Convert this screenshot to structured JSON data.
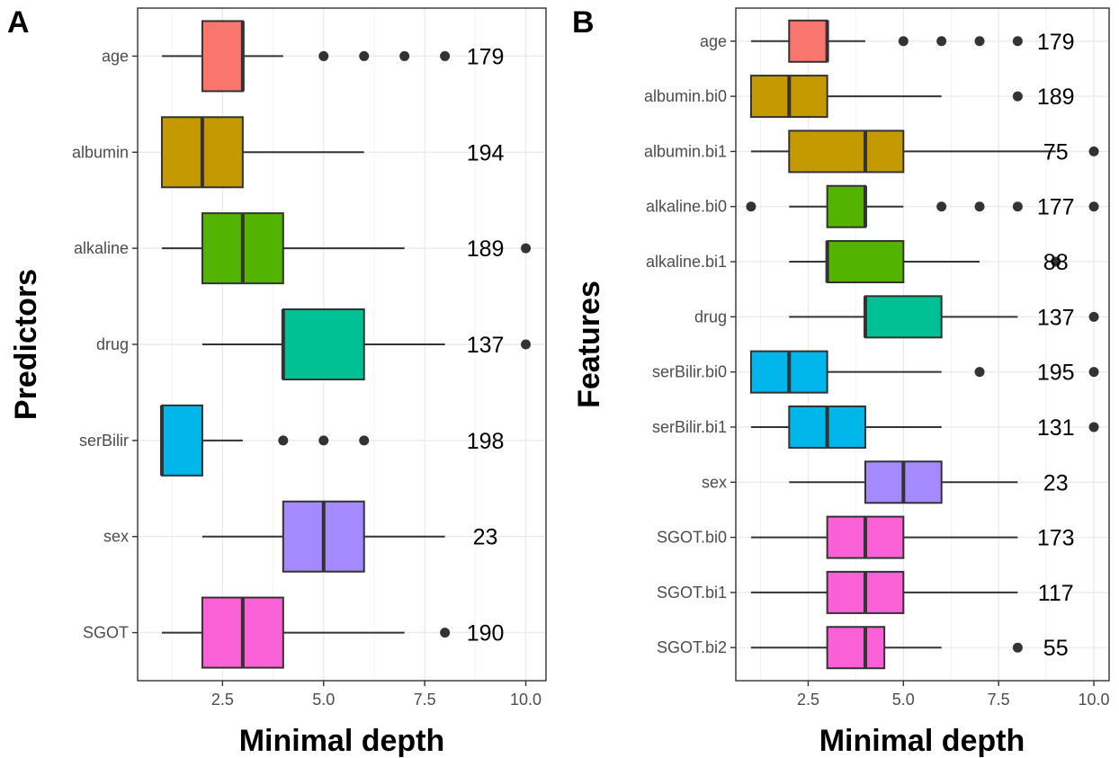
{
  "chart_data": [
    {
      "type": "boxplot",
      "panel_label": "A",
      "xlabel": "Minimal depth",
      "ylabel": "Predictors",
      "xlim": [
        0.4,
        10.5
      ],
      "x_ticks": [
        2.5,
        5.0,
        7.5,
        10.0
      ],
      "x_tick_labels": [
        "2.5",
        "5.0",
        "7.5",
        "10.0"
      ],
      "grid": true,
      "label_x": 9,
      "categories": [
        {
          "name": "age",
          "color": "#F8766D",
          "whisker_low": 1,
          "q1": 2,
          "median": 3,
          "q3": 3,
          "whisker_high": 4,
          "outliers": [
            5,
            6,
            7,
            8
          ],
          "count": "179"
        },
        {
          "name": "albumin",
          "color": "#C49A00",
          "whisker_low": 1,
          "q1": 1,
          "median": 2,
          "q3": 3,
          "whisker_high": 6,
          "outliers": [],
          "count": "194"
        },
        {
          "name": "alkaline",
          "color": "#53B400",
          "whisker_low": 1,
          "q1": 2,
          "median": 3,
          "q3": 4,
          "whisker_high": 7,
          "outliers": [
            10
          ],
          "count": "189"
        },
        {
          "name": "drug",
          "color": "#00C094",
          "whisker_low": 2,
          "q1": 4,
          "median": 4,
          "q3": 6,
          "whisker_high": 8,
          "outliers": [
            10
          ],
          "count": "137"
        },
        {
          "name": "serBilir",
          "color": "#00B6EB",
          "whisker_low": 1,
          "q1": 1,
          "median": 1,
          "q3": 2,
          "whisker_high": 3,
          "outliers": [
            4,
            5,
            6
          ],
          "count": "198"
        },
        {
          "name": "sex",
          "color": "#A58AFF",
          "whisker_low": 2,
          "q1": 4,
          "median": 5,
          "q3": 6,
          "whisker_high": 8,
          "outliers": [],
          "count": "23"
        },
        {
          "name": "SGOT",
          "color": "#FB61D7",
          "whisker_low": 1,
          "q1": 2,
          "median": 3,
          "q3": 4,
          "whisker_high": 7,
          "outliers": [
            8
          ],
          "count": "190"
        }
      ]
    },
    {
      "type": "boxplot",
      "panel_label": "B",
      "xlabel": "Minimal depth",
      "ylabel": "Features",
      "xlim": [
        0.6,
        10.4
      ],
      "x_ticks": [
        2.5,
        5.0,
        7.5,
        10.0
      ],
      "x_tick_labels": [
        "2.5",
        "5.0",
        "7.5",
        "10.0"
      ],
      "grid": true,
      "label_x": 9,
      "categories": [
        {
          "name": "age",
          "color": "#F8766D",
          "whisker_low": 1,
          "q1": 2,
          "median": 3,
          "q3": 3,
          "whisker_high": 4,
          "outliers": [
            5,
            6,
            7,
            8
          ],
          "count": "179"
        },
        {
          "name": "albumin.bi0",
          "color": "#C49A00",
          "whisker_low": 1,
          "q1": 1,
          "median": 2,
          "q3": 3,
          "whisker_high": 6,
          "outliers": [
            8
          ],
          "count": "189"
        },
        {
          "name": "albumin.bi1",
          "color": "#C49A00",
          "whisker_low": 1,
          "q1": 2,
          "median": 4,
          "q3": 5,
          "whisker_high": 9,
          "outliers": [
            10
          ],
          "count": "75"
        },
        {
          "name": "alkaline.bi0",
          "color": "#53B400",
          "whisker_low": 2,
          "q1": 3,
          "median": 4,
          "q3": 4,
          "whisker_high": 5,
          "outliers": [
            1,
            6,
            7,
            8,
            10
          ],
          "count": "177"
        },
        {
          "name": "alkaline.bi1",
          "color": "#53B400",
          "whisker_low": 2,
          "q1": 3,
          "median": 3,
          "q3": 5,
          "whisker_high": 7,
          "outliers": [
            9
          ],
          "count": "88"
        },
        {
          "name": "drug",
          "color": "#00C094",
          "whisker_low": 2,
          "q1": 4,
          "median": 4,
          "q3": 6,
          "whisker_high": 8,
          "outliers": [
            10
          ],
          "count": "137"
        },
        {
          "name": "serBilir.bi0",
          "color": "#00B6EB",
          "whisker_low": 1,
          "q1": 1,
          "median": 2,
          "q3": 3,
          "whisker_high": 6,
          "outliers": [
            7,
            10
          ],
          "count": "195"
        },
        {
          "name": "serBilir.bi1",
          "color": "#00B6EB",
          "whisker_low": 1,
          "q1": 2,
          "median": 3,
          "q3": 4,
          "whisker_high": 6,
          "outliers": [
            10
          ],
          "count": "131"
        },
        {
          "name": "sex",
          "color": "#A58AFF",
          "whisker_low": 2,
          "q1": 4,
          "median": 5,
          "q3": 6,
          "whisker_high": 8,
          "outliers": [],
          "count": "23"
        },
        {
          "name": "SGOT.bi0",
          "color": "#FB61D7",
          "whisker_low": 1,
          "q1": 3,
          "median": 4,
          "q3": 5,
          "whisker_high": 8,
          "outliers": [],
          "count": "173"
        },
        {
          "name": "SGOT.bi1",
          "color": "#FB61D7",
          "whisker_low": 1,
          "q1": 3,
          "median": 4,
          "q3": 5,
          "whisker_high": 8,
          "outliers": [],
          "count": "117"
        },
        {
          "name": "SGOT.bi2",
          "color": "#FB61D7",
          "whisker_low": 1,
          "q1": 3,
          "median": 4,
          "q3": 4.5,
          "whisker_high": 6,
          "outliers": [
            8
          ],
          "count": "55"
        }
      ]
    }
  ]
}
